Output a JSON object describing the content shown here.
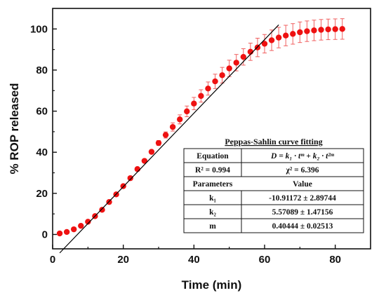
{
  "chart_data": {
    "type": "scatter",
    "xlabel": "Time (min)",
    "ylabel": "% ROP released",
    "xlim": [
      0,
      90
    ],
    "ylim": [
      -7,
      110
    ],
    "xticks": [
      0,
      20,
      40,
      60,
      80
    ],
    "yticks": [
      0,
      20,
      40,
      60,
      80,
      100
    ],
    "grid": false,
    "marker_color": "#ee1111",
    "errorbar_color": "#f06060",
    "fit_color": "#000000",
    "series": [
      {
        "kind": "scatter_errorbars",
        "x": [
          2,
          4,
          6,
          8,
          10,
          12,
          14,
          16,
          18,
          20,
          22,
          24,
          26,
          28,
          30,
          32,
          34,
          36,
          38,
          40,
          42,
          44,
          46,
          48,
          50,
          52,
          54,
          56,
          58,
          60,
          62,
          64,
          66,
          68,
          70,
          72,
          74,
          76,
          78,
          80,
          82
        ],
        "y": [
          0.5,
          1.2,
          2.5,
          4.2,
          6.2,
          8.9,
          12,
          15.8,
          19.5,
          23.5,
          27.4,
          31.8,
          35.8,
          40.2,
          44.5,
          48.4,
          52.3,
          56,
          59.9,
          63.7,
          67.4,
          71,
          74.5,
          77.5,
          80.8,
          83.6,
          86.4,
          88.9,
          91,
          92.8,
          94.5,
          95.8,
          96.8,
          97.6,
          98.4,
          98.9,
          99.3,
          99.6,
          99.8,
          99.9,
          100
        ],
        "err": [
          0,
          0,
          0,
          0,
          0,
          0,
          0,
          0,
          0,
          0,
          0,
          0,
          0,
          0,
          1.2,
          1.5,
          2,
          2.2,
          2.6,
          3,
          3,
          3.2,
          3.5,
          3.8,
          4,
          4,
          4,
          4.2,
          4.5,
          4.5,
          5,
          5,
          5,
          5,
          5,
          5,
          5,
          5,
          5,
          5,
          5
        ]
      },
      {
        "kind": "fit_line",
        "x": [
          2,
          64
        ],
        "y": [
          -9,
          102
        ]
      }
    ],
    "table": {
      "title": "Peppas-Sahlin curve fitting",
      "rows": [
        [
          "Equation",
          "D = k₁ · tᵐ + k₂ · t²ᵐ"
        ],
        [
          "R² = 0.994",
          "χ² = 6.396"
        ],
        [
          "Parameters",
          "Value"
        ],
        [
          "k₁",
          "-10.91172 ± 2.89744"
        ],
        [
          "k₂",
          "5.57089 ± 1.47156"
        ],
        [
          "m",
          "0.40444 ± 0.02513"
        ]
      ]
    }
  }
}
